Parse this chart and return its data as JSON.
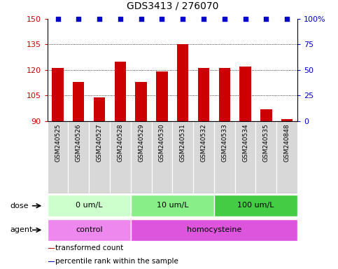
{
  "title": "GDS3413 / 276070",
  "samples": [
    "GSM240525",
    "GSM240526",
    "GSM240527",
    "GSM240528",
    "GSM240529",
    "GSM240530",
    "GSM240531",
    "GSM240532",
    "GSM240533",
    "GSM240534",
    "GSM240535",
    "GSM240848"
  ],
  "bar_values": [
    121,
    113,
    104,
    125,
    113,
    119,
    135,
    121,
    121,
    122,
    97,
    91
  ],
  "percentile_values": [
    100,
    100,
    100,
    100,
    100,
    100,
    100,
    100,
    100,
    100,
    100,
    100
  ],
  "bar_color": "#cc0000",
  "percentile_color": "#0000cc",
  "ylim": [
    90,
    150
  ],
  "yticks": [
    90,
    105,
    120,
    135,
    150
  ],
  "y2lim": [
    0,
    100
  ],
  "y2ticks": [
    0,
    25,
    50,
    75,
    100
  ],
  "y2ticklabels": [
    "0",
    "25",
    "50",
    "75",
    "100%"
  ],
  "grid_yticks": [
    105,
    120,
    135
  ],
  "dose_groups": [
    {
      "label": "0 um/L",
      "start": 0,
      "end": 3,
      "color": "#ccffcc"
    },
    {
      "label": "10 um/L",
      "start": 4,
      "end": 7,
      "color": "#88ee88"
    },
    {
      "label": "100 um/L",
      "start": 8,
      "end": 11,
      "color": "#44cc44"
    }
  ],
  "agent_groups": [
    {
      "label": "control",
      "start": 0,
      "end": 3,
      "color": "#ee88ee"
    },
    {
      "label": "homocysteine",
      "start": 4,
      "end": 11,
      "color": "#dd55dd"
    }
  ],
  "dose_label": "dose",
  "agent_label": "agent",
  "legend_items": [
    {
      "color": "#cc0000",
      "label": "transformed count"
    },
    {
      "color": "#0000cc",
      "label": "percentile rank within the sample"
    }
  ],
  "bar_width": 0.55,
  "sample_cell_color": "#d8d8d8",
  "sample_cell_edge": "#ffffff"
}
